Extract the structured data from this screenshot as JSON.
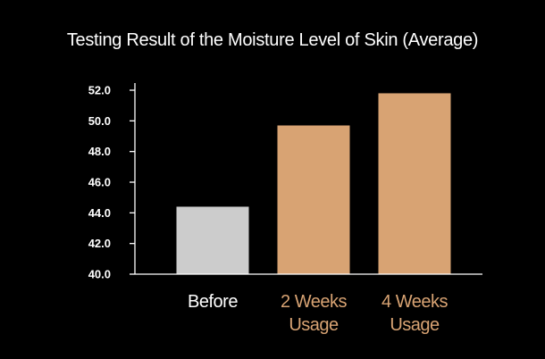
{
  "chart_data": {
    "type": "bar",
    "title": "Testing Result of the Moisture Level of Skin (Average)",
    "xlabel": "",
    "ylabel": "",
    "ylim": [
      40.0,
      52.0
    ],
    "yticks": [
      "40.0",
      "42.0",
      "44.0",
      "46.0",
      "48.0",
      "50.0",
      "52.0"
    ],
    "categories": [
      [
        "Before"
      ],
      [
        "2 Weeks",
        "Usage"
      ],
      [
        "4 Weeks",
        "Usage"
      ]
    ],
    "values": [
      44.4,
      49.7,
      51.8
    ],
    "bar_colors": [
      "#cccccc",
      "#d8a373",
      "#d8a373"
    ],
    "label_colors": [
      "#ffffff",
      "#d8a373",
      "#d8a373"
    ],
    "grid": false,
    "background": "#000000",
    "axis_color": "#ffffff"
  }
}
